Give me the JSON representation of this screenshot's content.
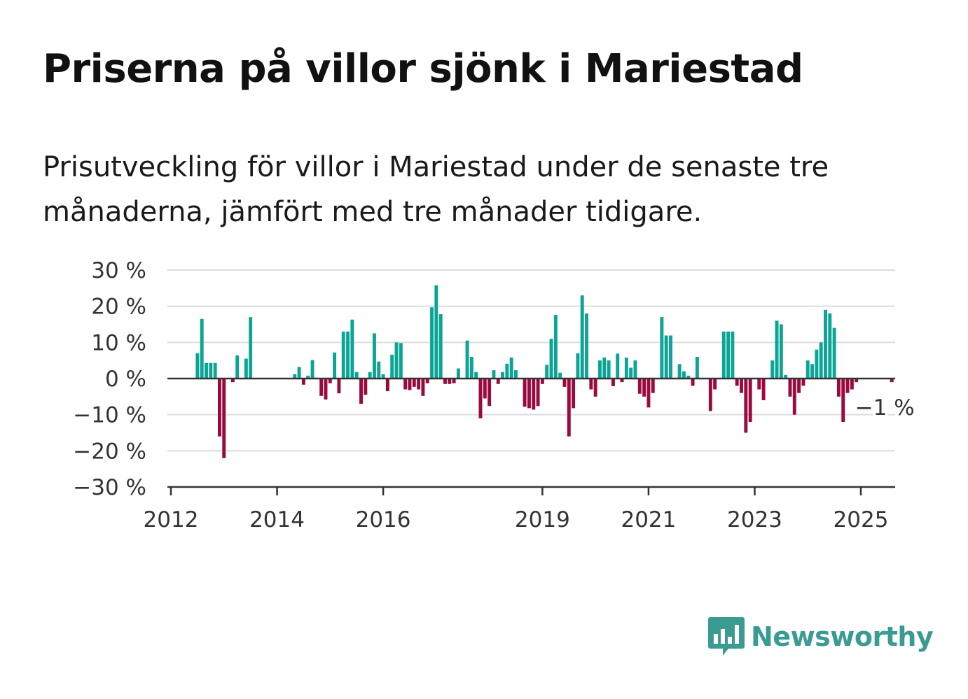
{
  "title": "Priserna på villor sjönk i Mariestad",
  "subtitle": "Prisutveckling för villor i Mariestad under de senaste tre månaderna, jämfört med tre månader tidigare.",
  "brand": {
    "name": "Newsworthy",
    "icon": "bar-chart-speech-bubble-icon",
    "color": "#3a9b93"
  },
  "colors": {
    "positive": "#0ba596",
    "negative": "#9b0a3e",
    "grid": "#dddddd",
    "axis": "#333333"
  },
  "chart_data": {
    "type": "bar",
    "title": "Priserna på villor sjönk i Mariestad",
    "xlabel": "",
    "ylabel": "",
    "ylim": [
      -30,
      30
    ],
    "yticks": [
      30,
      20,
      10,
      0,
      -10,
      -20,
      -30
    ],
    "ytick_labels": [
      "30 %",
      "20 %",
      "10 %",
      "0 %",
      "−10 %",
      "−20 %",
      "−30 %"
    ],
    "xlim": [
      "2012-01",
      "2025-09"
    ],
    "xticks": [
      "2012-01",
      "2014-01",
      "2016-01",
      "2019-01",
      "2021-01",
      "2023-01",
      "2025-01"
    ],
    "xtick_labels": [
      "2012",
      "2014",
      "2016",
      "2019",
      "2021",
      "2023",
      "2025"
    ],
    "grid": true,
    "annotation": {
      "label": "−1 %",
      "at": "2025-08",
      "value": -1
    },
    "series": [
      {
        "values": [
          [
            "2012-07",
            7
          ],
          [
            "2012-08",
            16.5
          ],
          [
            "2012-09",
            4.3
          ],
          [
            "2012-10",
            4.3
          ],
          [
            "2012-11",
            4.3
          ],
          [
            "2012-12",
            -16
          ],
          [
            "2013-01",
            -22
          ],
          [
            "2013-03",
            -1
          ],
          [
            "2013-04",
            6.4
          ],
          [
            "2013-06",
            5.5
          ],
          [
            "2013-07",
            17
          ],
          [
            "2014-05",
            1.2
          ],
          [
            "2014-06",
            3.2
          ],
          [
            "2014-07",
            -1.7
          ],
          [
            "2014-08",
            0.8
          ],
          [
            "2014-09",
            5.1
          ],
          [
            "2014-11",
            -4.8
          ],
          [
            "2014-12",
            -5.8
          ],
          [
            "2015-01",
            -1.3
          ],
          [
            "2015-02",
            7.2
          ],
          [
            "2015-03",
            -4.1
          ],
          [
            "2015-04",
            13
          ],
          [
            "2015-05",
            13
          ],
          [
            "2015-06",
            16.3
          ],
          [
            "2015-07",
            1.8
          ],
          [
            "2015-08",
            -7
          ],
          [
            "2015-09",
            -4.5
          ],
          [
            "2015-10",
            1.8
          ],
          [
            "2015-11",
            12.5
          ],
          [
            "2015-12",
            4.7
          ],
          [
            "2016-01",
            1.2
          ],
          [
            "2016-02",
            -3.5
          ],
          [
            "2016-03",
            6.6
          ],
          [
            "2016-04",
            10
          ],
          [
            "2016-05",
            9.8
          ],
          [
            "2016-06",
            -3
          ],
          [
            "2016-07",
            -3.2
          ],
          [
            "2016-08",
            -2.3
          ],
          [
            "2016-09",
            -3
          ],
          [
            "2016-10",
            -4.8
          ],
          [
            "2016-11",
            -1.3
          ],
          [
            "2016-12",
            19.7
          ],
          [
            "2017-01",
            25.8
          ],
          [
            "2017-02",
            17.8
          ],
          [
            "2017-03",
            -1.5
          ],
          [
            "2017-04",
            -1.5
          ],
          [
            "2017-05",
            -1.3
          ],
          [
            "2017-06",
            2.8
          ],
          [
            "2017-08",
            10.5
          ],
          [
            "2017-09",
            6
          ],
          [
            "2017-10",
            1.8
          ],
          [
            "2017-11",
            -11
          ],
          [
            "2017-12",
            -5.5
          ],
          [
            "2018-01",
            -7.6
          ],
          [
            "2018-02",
            2.3
          ],
          [
            "2018-03",
            -1.5
          ],
          [
            "2018-04",
            1.8
          ],
          [
            "2018-05",
            4.1
          ],
          [
            "2018-06",
            5.8
          ],
          [
            "2018-07",
            2.3
          ],
          [
            "2018-09",
            -7.8
          ],
          [
            "2018-10",
            -8.2
          ],
          [
            "2018-11",
            -8.6
          ],
          [
            "2018-12",
            -7.6
          ],
          [
            "2019-01",
            -1.5
          ],
          [
            "2019-02",
            3.8
          ],
          [
            "2019-03",
            11
          ],
          [
            "2019-04",
            17.6
          ],
          [
            "2019-05",
            1.6
          ],
          [
            "2019-06",
            -2.3
          ],
          [
            "2019-07",
            -16
          ],
          [
            "2019-08",
            -8.2
          ],
          [
            "2019-09",
            7
          ],
          [
            "2019-10",
            23
          ],
          [
            "2019-11",
            18
          ],
          [
            "2019-12",
            -3
          ],
          [
            "2020-01",
            -5
          ],
          [
            "2020-02",
            5
          ],
          [
            "2020-03",
            5.8
          ],
          [
            "2020-04",
            5
          ],
          [
            "2020-05",
            -2.1
          ],
          [
            "2020-06",
            6.9
          ],
          [
            "2020-07",
            -1
          ],
          [
            "2020-08",
            5.8
          ],
          [
            "2020-09",
            3
          ],
          [
            "2020-10",
            5
          ],
          [
            "2020-11",
            -4.2
          ],
          [
            "2020-12",
            -5
          ],
          [
            "2021-01",
            -8
          ],
          [
            "2021-02",
            -4
          ],
          [
            "2021-04",
            17
          ],
          [
            "2021-05",
            11.9
          ],
          [
            "2021-06",
            11.9
          ],
          [
            "2021-08",
            4
          ],
          [
            "2021-09",
            2
          ],
          [
            "2021-10",
            0.8
          ],
          [
            "2021-11",
            -2
          ],
          [
            "2021-12",
            6
          ],
          [
            "2022-03",
            -9
          ],
          [
            "2022-04",
            -3
          ],
          [
            "2022-06",
            13
          ],
          [
            "2022-07",
            13
          ],
          [
            "2022-08",
            13
          ],
          [
            "2022-09",
            -2
          ],
          [
            "2022-10",
            -4
          ],
          [
            "2022-11",
            -15
          ],
          [
            "2022-12",
            -12
          ],
          [
            "2023-02",
            -3
          ],
          [
            "2023-03",
            -6
          ],
          [
            "2023-05",
            5
          ],
          [
            "2023-06",
            16
          ],
          [
            "2023-07",
            15
          ],
          [
            "2023-08",
            1
          ],
          [
            "2023-09",
            -5
          ],
          [
            "2023-10",
            -10
          ],
          [
            "2023-11",
            -4
          ],
          [
            "2023-12",
            -2
          ],
          [
            "2024-01",
            5
          ],
          [
            "2024-02",
            4
          ],
          [
            "2024-03",
            8
          ],
          [
            "2024-04",
            10
          ],
          [
            "2024-05",
            19
          ],
          [
            "2024-06",
            18
          ],
          [
            "2024-07",
            14
          ],
          [
            "2024-08",
            -5
          ],
          [
            "2024-09",
            -12
          ],
          [
            "2024-10",
            -4
          ],
          [
            "2024-11",
            -3
          ],
          [
            "2024-12",
            -1
          ],
          [
            "2025-08",
            -1
          ]
        ]
      }
    ]
  }
}
